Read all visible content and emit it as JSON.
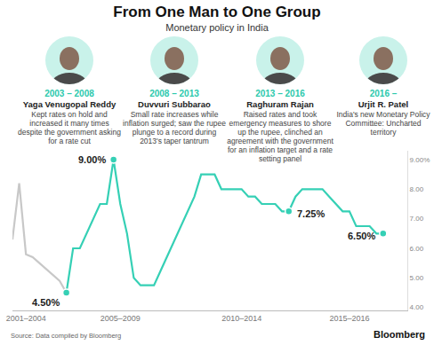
{
  "chart_data": {
    "type": "line",
    "title": "From One Man to One Group",
    "subtitle": "Monetary policy in India",
    "source": "Source: Data compiled by Bloomberg",
    "categories": [
      null,
      null,
      "2001–2004",
      null,
      null,
      null,
      null,
      null,
      null,
      null,
      null,
      null,
      null,
      null,
      null,
      null,
      "2005–2009",
      null,
      null,
      null,
      null,
      null,
      null,
      null,
      null,
      null,
      null,
      null,
      null,
      null,
      null,
      null,
      null,
      null,
      "2010–2014",
      null,
      null,
      null,
      null,
      null,
      null,
      null,
      null,
      null,
      null,
      null,
      null,
      null,
      null,
      null,
      "2015–2016",
      null,
      null,
      null,
      null,
      null
    ],
    "series": [
      {
        "color": "#c8c8c8",
        "values": [
          6.3,
          8.2,
          5.8,
          5.7,
          5.5,
          5.3,
          5.1,
          4.9,
          4.5,
          null,
          null,
          null,
          null,
          null,
          null,
          null,
          null,
          null,
          null,
          null,
          null,
          null,
          null,
          null,
          null,
          null,
          null,
          null,
          null,
          null,
          null,
          null,
          null,
          null,
          null,
          null,
          null,
          null,
          null,
          null,
          null,
          null,
          null,
          null,
          null,
          null,
          null,
          null,
          null,
          null,
          null,
          null,
          null,
          null,
          null,
          null
        ]
      },
      {
        "color": "#35d0b5",
        "values": [
          null,
          null,
          null,
          null,
          null,
          null,
          null,
          null,
          4.5,
          6.0,
          6.0,
          6.5,
          7.0,
          7.5,
          7.5,
          9.0,
          7.5,
          6.5,
          5.0,
          4.75,
          4.75,
          4.75,
          5.25,
          5.75,
          6.25,
          6.75,
          7.25,
          7.75,
          8.5,
          8.5,
          8.5,
          8.0,
          8.0,
          8.0,
          8.0,
          7.75,
          7.75,
          7.5,
          7.5,
          7.5,
          7.25,
          7.25,
          7.75,
          8.0,
          8.0,
          8.0,
          8.0,
          7.75,
          7.5,
          7.25,
          7.25,
          6.75,
          6.75,
          6.75,
          6.5,
          6.5
        ]
      }
    ],
    "ylim": [
      3.9,
      9.3
    ],
    "yticks": [
      {
        "value": 4,
        "label": "4.00"
      },
      {
        "value": 5,
        "label": "5.00"
      },
      {
        "value": 6,
        "label": "6.00"
      },
      {
        "value": 7,
        "label": "7.00"
      },
      {
        "value": 8,
        "label": "8.00"
      },
      {
        "value": 9,
        "label": "9.00%"
      }
    ],
    "grid": false,
    "marker": "circle",
    "annotations": [
      {
        "text": "4.50%",
        "index": 8,
        "value": 4.5
      },
      {
        "text": "9.00%",
        "index": 15,
        "value": 9.0
      },
      {
        "text": "7.25%",
        "index": 41,
        "value": 7.25
      },
      {
        "text": "6.50%",
        "index": 55,
        "value": 6.5
      }
    ]
  },
  "governors": [
    {
      "years": "2003 – 2008",
      "name": "Yaga Venugopal Reddy",
      "text": "Kept rates on hold and increased it many times despite the government asking for a rate cut"
    },
    {
      "years": "2008 – 2013",
      "name": "Duvvuri Subbarao",
      "text": "Small rate increases while inflation surged; saw the rupee plunge to a record during 2013's taper tantrum"
    },
    {
      "years": "2013 – 2016",
      "name": "Raghuram Rajan",
      "text": "Raised rates and took emergency measures to shore up the rupee, clinched an agreement with the government for an inflation target and a rate setting panel"
    },
    {
      "years": "2016 –",
      "name": "Urjit R. Patel",
      "text": "India's new Monetary Policy Committee: Uncharted territory"
    }
  ],
  "brand": "Bloomberg"
}
